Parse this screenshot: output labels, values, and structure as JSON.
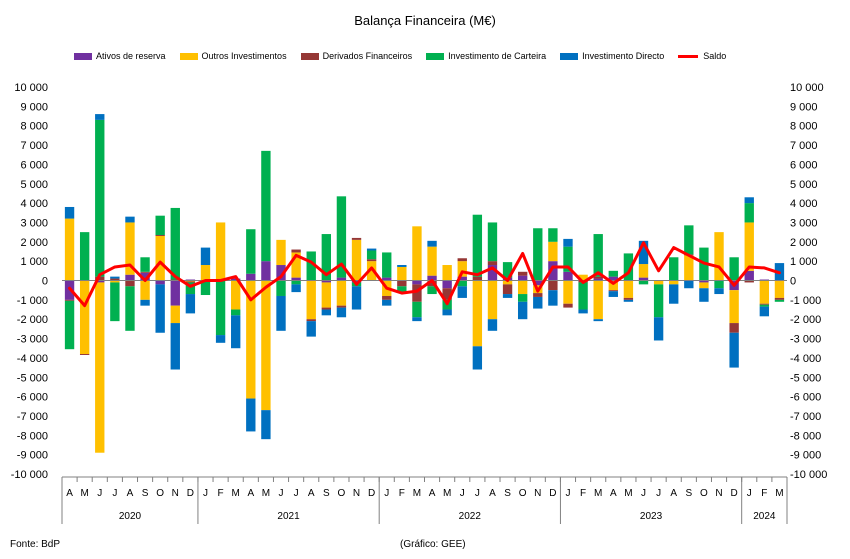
{
  "chart_data": {
    "type": "bar",
    "stacked": true,
    "title": "Balança Financeira (M€)",
    "ylim": [
      -10000,
      10000
    ],
    "ytick_step": 1000,
    "ytick_labels": [
      "-10 000",
      "-9 000",
      "-8 000",
      "-7 000",
      "-6 000",
      "-5 000",
      "-4 000",
      "-3 000",
      "-2 000",
      "-1 000",
      "0",
      "1 000",
      "2 000",
      "3 000",
      "4 000",
      "5 000",
      "6 000",
      "7 000",
      "8 000",
      "9 000",
      "10 000"
    ],
    "grid": false,
    "legend_position": "top",
    "categories": [
      "A",
      "M",
      "J",
      "J",
      "A",
      "S",
      "O",
      "N",
      "D",
      "J",
      "F",
      "M",
      "A",
      "M",
      "J",
      "J",
      "A",
      "S",
      "O",
      "N",
      "D",
      "J",
      "F",
      "M",
      "A",
      "M",
      "J",
      "J",
      "A",
      "S",
      "O",
      "N",
      "D",
      "J",
      "F",
      "M",
      "A",
      "M",
      "J",
      "J",
      "A",
      "S",
      "O",
      "N",
      "D",
      "J",
      "F",
      "M"
    ],
    "year_groups": [
      {
        "label": "2020",
        "start": 0,
        "count": 9
      },
      {
        "label": "2021",
        "start": 9,
        "count": 12
      },
      {
        "label": "2022",
        "start": 21,
        "count": 12
      },
      {
        "label": "2023",
        "start": 33,
        "count": 12
      },
      {
        "label": "2024",
        "start": 45,
        "count": 3
      }
    ],
    "series": [
      {
        "name": "Ativos de reserva",
        "color": "#7030A0",
        "values": [
          -1000,
          0,
          -100,
          0,
          300,
          400,
          -200,
          -1300,
          50,
          0,
          0,
          100,
          350,
          1000,
          800,
          150,
          0,
          -100,
          150,
          -100,
          0,
          150,
          0,
          -200,
          250,
          -400,
          200,
          0,
          800,
          150,
          250,
          -250,
          1000,
          450,
          0,
          100,
          200,
          0,
          150,
          0,
          0,
          0,
          -100,
          0,
          -500,
          500,
          50,
          0
        ]
      },
      {
        "name": "Outros Investimentos",
        "color": "#FFC000",
        "values": [
          3200,
          -3800,
          -8800,
          -100,
          2700,
          -1000,
          2300,
          -900,
          -50,
          800,
          3000,
          -1500,
          -6100,
          -6700,
          1300,
          1300,
          -2000,
          -1300,
          -1300,
          2100,
          1000,
          -800,
          700,
          2800,
          1500,
          800,
          800,
          -3400,
          -2000,
          -200,
          -700,
          -400,
          1000,
          -1200,
          300,
          -2000,
          -500,
          -900,
          700,
          -200,
          -200,
          1300,
          -300,
          2500,
          -1700,
          2500,
          -1200,
          -900
        ]
      },
      {
        "name": "Derivados Financeiros",
        "color": "#953735",
        "values": [
          -50,
          -50,
          200,
          100,
          -300,
          50,
          50,
          50,
          -50,
          -50,
          -20,
          0,
          0,
          0,
          0,
          150,
          -100,
          -100,
          -100,
          100,
          100,
          -200,
          -300,
          -900,
          -300,
          -600,
          150,
          200,
          200,
          -500,
          200,
          -200,
          -500,
          -200,
          -100,
          100,
          -50,
          -100,
          0,
          0,
          0,
          50,
          0,
          0,
          -500,
          -100,
          -50,
          -100
        ]
      },
      {
        "name": "Investimento de Carteira",
        "color": "#00B050",
        "values": [
          -2500,
          2500,
          8100,
          -2000,
          -2300,
          750,
          1000,
          3700,
          -600,
          -700,
          -2800,
          -300,
          2300,
          5700,
          -800,
          -200,
          1500,
          2400,
          4200,
          -200,
          450,
          1300,
          -300,
          -800,
          -400,
          -500,
          -300,
          3200,
          2000,
          800,
          -400,
          2700,
          700,
          1300,
          -1400,
          2200,
          300,
          1400,
          -200,
          -1700,
          1200,
          1500,
          1700,
          -400,
          1200,
          1000,
          -100,
          -100
        ]
      },
      {
        "name": "Investimento Directo",
        "color": "#0070C0",
        "values": [
          600,
          0,
          300,
          100,
          300,
          -300,
          -2500,
          -2400,
          -1000,
          900,
          -400,
          -1700,
          -1700,
          -1500,
          -1800,
          -400,
          -800,
          -300,
          -500,
          -1200,
          100,
          -300,
          100,
          -200,
          300,
          -300,
          -600,
          -1200,
          -600,
          -200,
          -900,
          -600,
          -800,
          400,
          -200,
          -100,
          -300,
          -100,
          1200,
          -1200,
          -1000,
          -400,
          -700,
          -300,
          -1800,
          300,
          -500,
          900
        ]
      }
    ],
    "line_series": {
      "name": "Saldo",
      "color": "#FF0000",
      "values": [
        -400,
        -1300,
        300,
        700,
        800,
        0,
        950,
        200,
        -300,
        0,
        0,
        200,
        -1000,
        -350,
        200,
        1300,
        950,
        300,
        850,
        -200,
        650,
        -400,
        -650,
        -550,
        0,
        -1200,
        450,
        300,
        650,
        0,
        1400,
        -550,
        700,
        700,
        -100,
        400,
        -150,
        400,
        1950,
        500,
        1700,
        1300,
        900,
        700,
        -250,
        700,
        650,
        400
      ]
    },
    "footer_source": "Fonte: BdP",
    "footer_credit": "(Gráfico: GEE)"
  }
}
